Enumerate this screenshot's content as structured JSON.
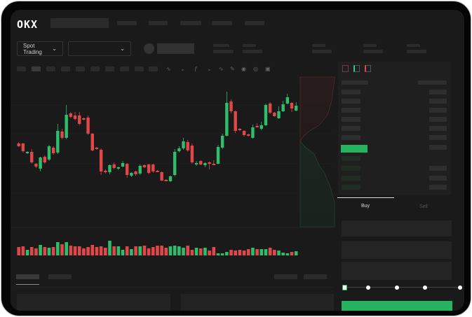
{
  "header": {
    "logo": "OKX",
    "nav_count": 5
  },
  "toolbar": {
    "market_dropdown": "Spot Trading",
    "pair_dropdown": "",
    "chevron": "chevron-down-icon"
  },
  "orderbook": {
    "view_icons": [
      "orderbook-both-icon",
      "orderbook-bids-icon",
      "orderbook-asks-icon"
    ]
  },
  "trade": {
    "tabs": [
      {
        "label": "Buy",
        "active": true
      },
      {
        "label": "Sell",
        "active": false
      }
    ],
    "slider_percent": 0,
    "slider_stops": [
      0,
      25,
      50,
      75,
      100
    ]
  },
  "colors": {
    "up": "#2ebd6b",
    "down": "#e04848",
    "accent": "#25b35f",
    "background": "#1a1a1a"
  },
  "chart_data": {
    "type": "candlestick",
    "title": "",
    "xlabel": "",
    "ylabel": "",
    "grid": true,
    "candles": [
      [
        177,
        179,
        172,
        173
      ],
      [
        177,
        178,
        164,
        166
      ],
      [
        163,
        166,
        162,
        165
      ],
      [
        165,
        169,
        148,
        150
      ],
      [
        148,
        149,
        142,
        144
      ],
      [
        141,
        158,
        137,
        157
      ],
      [
        158,
        160,
        148,
        150
      ],
      [
        154,
        175,
        152,
        173
      ],
      [
        171,
        173,
        161,
        163
      ],
      [
        164,
        205,
        162,
        195
      ],
      [
        194,
        198,
        183,
        185
      ],
      [
        185,
        232,
        183,
        218
      ],
      [
        220,
        222,
        213,
        215
      ],
      [
        217,
        222,
        210,
        212
      ],
      [
        217,
        222,
        203,
        205
      ],
      [
        213,
        214,
        210,
        211
      ],
      [
        214,
        217,
        189,
        191
      ],
      [
        191,
        192,
        166,
        167
      ],
      [
        171,
        172,
        168,
        169
      ],
      [
        168,
        170,
        132,
        137
      ],
      [
        138,
        140,
        134,
        136
      ],
      [
        136,
        147,
        133,
        146
      ],
      [
        147,
        150,
        140,
        142
      ],
      [
        141,
        144,
        139,
        143
      ],
      [
        144,
        152,
        143,
        149
      ],
      [
        148,
        149,
        128,
        132
      ],
      [
        131,
        136,
        129,
        135
      ],
      [
        137,
        138,
        131,
        133
      ],
      [
        134,
        147,
        132,
        145
      ],
      [
        146,
        147,
        142,
        143
      ],
      [
        147,
        148,
        133,
        135
      ],
      [
        147,
        148,
        135,
        137
      ],
      [
        138,
        139,
        136,
        137
      ],
      [
        136,
        137,
        123,
        124
      ],
      [
        125,
        126,
        123,
        124
      ],
      [
        123,
        131,
        122,
        130
      ],
      [
        132,
        169,
        130,
        165
      ],
      [
        166,
        173,
        164,
        170
      ],
      [
        170,
        185,
        168,
        180
      ],
      [
        179,
        182,
        165,
        167
      ],
      [
        174,
        177,
        148,
        150
      ],
      [
        147,
        152,
        145,
        149
      ],
      [
        152,
        153,
        146,
        147
      ],
      [
        146,
        150,
        143,
        149
      ],
      [
        150,
        151,
        140,
        149
      ],
      [
        148,
        153,
        146,
        147
      ],
      [
        148,
        175,
        147,
        172
      ],
      [
        171,
        191,
        169,
        188
      ],
      [
        188,
        251,
        187,
        235
      ],
      [
        237,
        240,
        220,
        223
      ],
      [
        223,
        224,
        192,
        195
      ],
      [
        198,
        199,
        195,
        196
      ],
      [
        195,
        196,
        187,
        189
      ],
      [
        190,
        191,
        187,
        188
      ],
      [
        185,
        204,
        184,
        200
      ],
      [
        202,
        206,
        200,
        200
      ],
      [
        198,
        208,
        196,
        203
      ],
      [
        203,
        234,
        202,
        232
      ],
      [
        234,
        236,
        219,
        221
      ],
      [
        221,
        222,
        215,
        216
      ],
      [
        213,
        230,
        212,
        223
      ],
      [
        223,
        238,
        222,
        233
      ],
      [
        234,
        248,
        233,
        243
      ],
      [
        235,
        236,
        222,
        227
      ],
      [
        224,
        236,
        223,
        231
      ]
    ],
    "volume": [
      12,
      13,
      8,
      12,
      10,
      15,
      12,
      11,
      12,
      19,
      16,
      19,
      14,
      13,
      13,
      10,
      12,
      15,
      12,
      13,
      11,
      21,
      13,
      13,
      8,
      13,
      9,
      13,
      13,
      14,
      10,
      12,
      14,
      14,
      11,
      13,
      14,
      13,
      11,
      14,
      8,
      11,
      10,
      11,
      7,
      12,
      3,
      3,
      5,
      8,
      7,
      8,
      7,
      9,
      11,
      9,
      9,
      9,
      11,
      8,
      7,
      4,
      3,
      5,
      6
    ]
  }
}
